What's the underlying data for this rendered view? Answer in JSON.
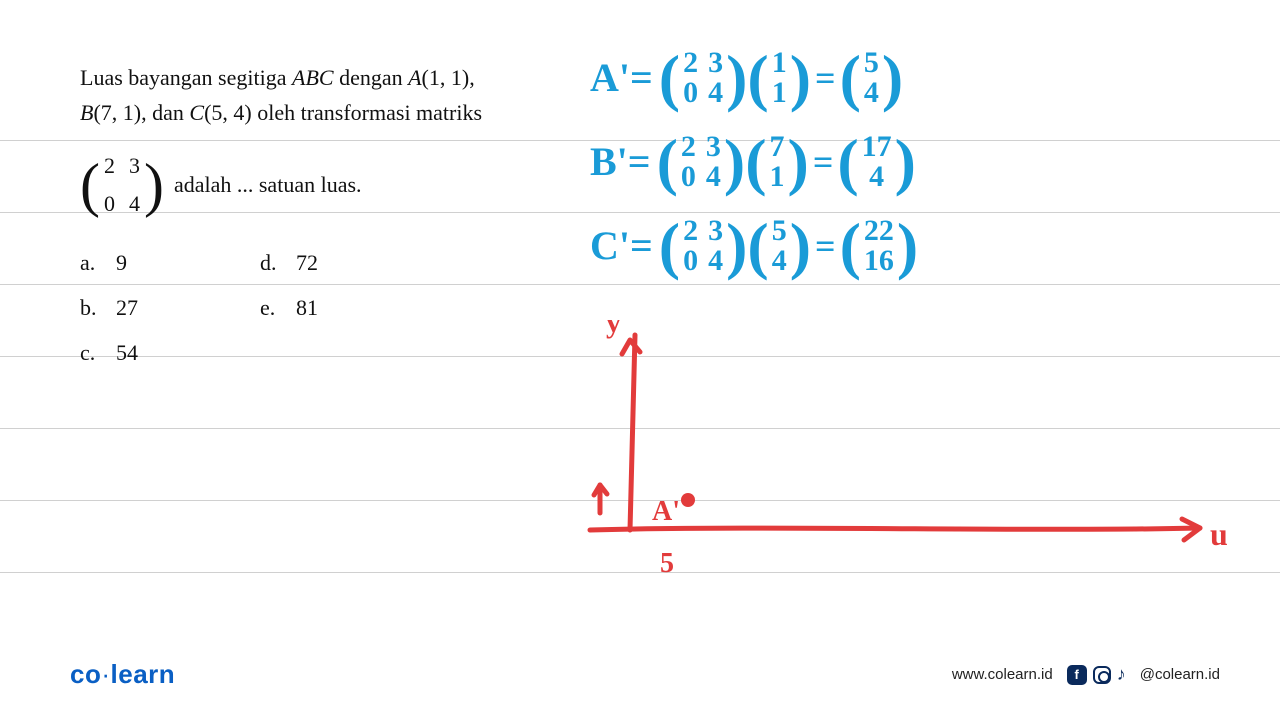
{
  "ruled_line_positions": [
    140,
    212,
    284,
    356,
    428,
    500,
    572
  ],
  "question": {
    "line1_pre": "Luas bayangan segitiga ",
    "abc": "ABC",
    "line1_mid": " dengan ",
    "A": "A",
    "A_coords": "(1, 1),",
    "B": "B",
    "B_coords": "(7, 1), dan ",
    "C": "C",
    "C_coords": "(5, 4) oleh transformasi matriks",
    "matrix": {
      "a": "2",
      "b": "3",
      "c": "0",
      "d": "4"
    },
    "tail": "adalah ... satuan luas.",
    "options": {
      "a": {
        "label": "a.",
        "value": "9"
      },
      "b": {
        "label": "b.",
        "value": "27"
      },
      "c": {
        "label": "c.",
        "value": "54"
      },
      "d": {
        "label": "d.",
        "value": "72"
      },
      "e": {
        "label": "e.",
        "value": "81"
      }
    }
  },
  "handwriting": {
    "color": "#1a9bd7",
    "rows": [
      {
        "label": "A'=",
        "m1": [
          "2",
          "3",
          "0",
          "4"
        ],
        "m2": [
          "1",
          "1"
        ],
        "res": [
          "5",
          "4"
        ]
      },
      {
        "label": "B'=",
        "m1": [
          "2",
          "3",
          "0",
          "4"
        ],
        "m2": [
          "7",
          "1"
        ],
        "res": [
          "17",
          "4"
        ]
      },
      {
        "label": "C'=",
        "m1": [
          "2",
          "3",
          "0",
          "4"
        ],
        "m2": [
          "5",
          "4"
        ],
        "res": [
          "22",
          "16"
        ]
      }
    ]
  },
  "sketch": {
    "red": "#e23b3b",
    "labels": {
      "y": "y",
      "x": "u",
      "point": "A'",
      "xtick": "5",
      "ytick": "↑"
    }
  },
  "footer": {
    "brand_a": "co",
    "brand_b": "learn",
    "url": "www.colearn.id",
    "handle": "@colearn.id"
  }
}
